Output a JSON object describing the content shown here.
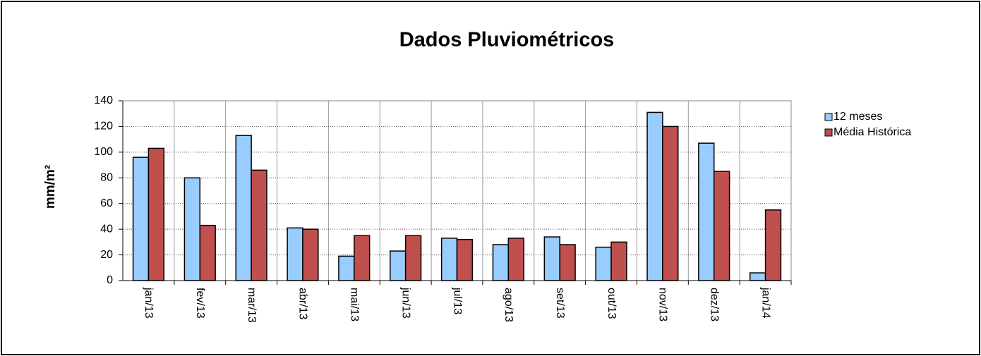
{
  "chart_data": {
    "type": "bar",
    "title": "Dados Pluviométricos",
    "y_label": "mm/m²",
    "categories": [
      "jan/13",
      "fev/13",
      "mar/13",
      "abr/13",
      "mai/13",
      "jun/13",
      "jul/13",
      "ago/13",
      "set/13",
      "out/13",
      "nov/13",
      "dez/13",
      "jan/14"
    ],
    "series": [
      {
        "name": "12 meses",
        "color": "#99ccff",
        "values": [
          96,
          80,
          113,
          41,
          19,
          23,
          33,
          28,
          34,
          26,
          131,
          107,
          6
        ]
      },
      {
        "name": "Média Histórica",
        "color": "#c0504d",
        "values": [
          103,
          43,
          86,
          40,
          35,
          35,
          32,
          33,
          28,
          30,
          120,
          85,
          55
        ]
      }
    ],
    "ylim": [
      0,
      140
    ],
    "yticks": [
      0,
      20,
      40,
      60,
      80,
      100,
      120,
      140
    ],
    "grid": true,
    "legend": "right"
  }
}
